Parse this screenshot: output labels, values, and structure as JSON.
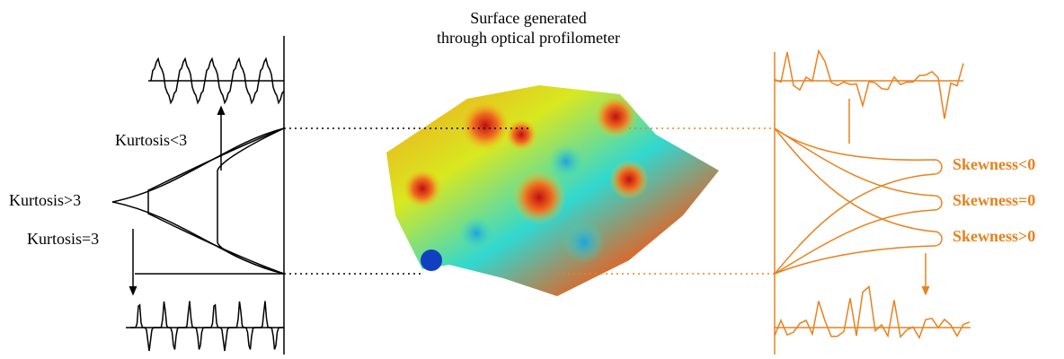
{
  "title_lines": [
    "Surface generated",
    "through optical profilometer"
  ],
  "kurtosis_labels": [
    "Kurtosis<3",
    "Kurtosis>3",
    "Kurtosis=3"
  ],
  "skewness_labels": [
    "Skewness<0",
    "Skewness=0",
    "Skewness>0"
  ]
}
